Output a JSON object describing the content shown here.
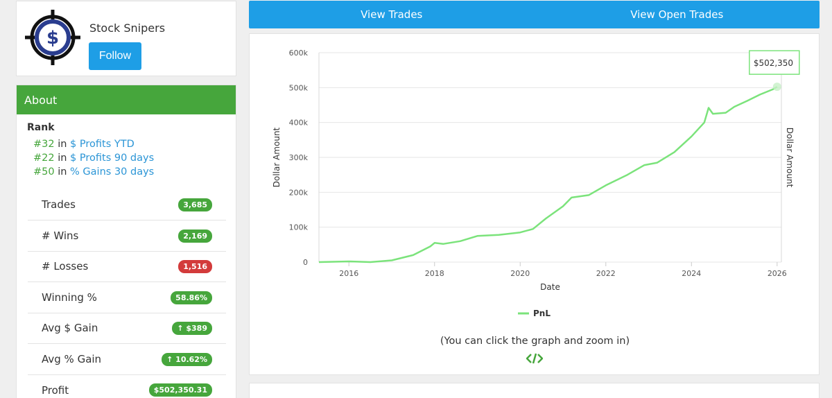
{
  "profile": {
    "name": "Stock Snipers",
    "follow_label": "Follow"
  },
  "about": {
    "header": "About",
    "rank_title": "Rank",
    "ranks": [
      {
        "num": "#32",
        "in": "in",
        "label": "$ Profits YTD"
      },
      {
        "num": "#22",
        "in": "in",
        "label": "$ Profits 90 days"
      },
      {
        "num": "#50",
        "in": "in",
        "label": "% Gains 30 days"
      }
    ],
    "stats": [
      {
        "label": "Trades",
        "value": "3,685",
        "color": "green"
      },
      {
        "label": "# Wins",
        "value": "2,169",
        "color": "green"
      },
      {
        "label": "# Losses",
        "value": "1,516",
        "color": "red"
      },
      {
        "label": "Winning %",
        "value": "58.86%",
        "color": "green"
      },
      {
        "label": "Avg $ Gain",
        "value": "↑ $389",
        "color": "green"
      },
      {
        "label": "Avg % Gain",
        "value": "↑ 10.62%",
        "color": "green"
      },
      {
        "label": "Profit",
        "value": "$502,350.31",
        "color": "green"
      }
    ]
  },
  "nav": {
    "view_trades": "View Trades",
    "view_open_trades": "View Open Trades"
  },
  "chart": {
    "zoom_hint": "(You can click the graph and zoom in)",
    "tooltip": "$502,350"
  },
  "colors": {
    "accent_blue": "#1e9ee6",
    "accent_green": "#46a63c",
    "line_green": "#7be37b",
    "badge_red": "#d33b3b"
  },
  "chart_data": {
    "type": "line",
    "title": "",
    "xlabel": "Date",
    "ylabel": "Dollar Amount",
    "ylabel_right": "Dollar Amount",
    "xlim": [
      2015.3,
      2026.1
    ],
    "ylim": [
      0,
      600000
    ],
    "x_ticks": [
      2016,
      2018,
      2020,
      2022,
      2024,
      2026
    ],
    "y_ticks": [
      0,
      100000,
      200000,
      300000,
      400000,
      500000,
      600000
    ],
    "y_tick_labels": [
      "0",
      "100k",
      "200k",
      "300k",
      "400k",
      "500k",
      "600k"
    ],
    "legend": [
      "PnL"
    ],
    "series": [
      {
        "name": "PnL",
        "x": [
          2015.3,
          2016.0,
          2016.5,
          2017.0,
          2017.5,
          2017.9,
          2018.0,
          2018.2,
          2018.6,
          2019.0,
          2019.5,
          2020.0,
          2020.3,
          2020.6,
          2021.0,
          2021.2,
          2021.6,
          2022.0,
          2022.5,
          2022.9,
          2023.2,
          2023.6,
          2024.0,
          2024.3,
          2024.4,
          2024.5,
          2024.8,
          2025.0,
          2025.3,
          2025.6,
          2025.9,
          2026.0
        ],
        "values": [
          0,
          2000,
          0,
          5000,
          20000,
          45000,
          55000,
          52000,
          60000,
          75000,
          78000,
          85000,
          95000,
          125000,
          160000,
          185000,
          192000,
          220000,
          250000,
          278000,
          285000,
          315000,
          360000,
          400000,
          442000,
          425000,
          428000,
          445000,
          462000,
          480000,
          495000,
          502350
        ]
      }
    ]
  }
}
